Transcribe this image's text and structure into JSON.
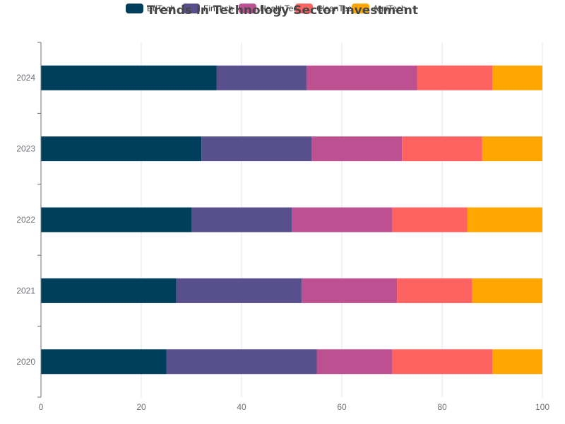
{
  "chart_data": {
    "type": "bar",
    "orientation": "horizontal",
    "stacked": true,
    "title": "Trends in Technology Sector Investment",
    "categories": [
      "2020",
      "2021",
      "2022",
      "2023",
      "2024"
    ],
    "series": [
      {
        "name": "EdTech",
        "color": "#003f5c",
        "values": [
          25,
          27,
          30,
          32,
          35
        ]
      },
      {
        "name": "FinTech",
        "color": "#58508d",
        "values": [
          30,
          25,
          20,
          22,
          18
        ]
      },
      {
        "name": "HealthTech",
        "color": "#bc5090",
        "values": [
          15,
          19,
          20,
          18,
          22
        ]
      },
      {
        "name": "CleanTech",
        "color": "#ff6361",
        "values": [
          20,
          15,
          15,
          16,
          15
        ]
      },
      {
        "name": "AgriTech",
        "color": "#ffa600",
        "values": [
          10,
          14,
          15,
          12,
          10
        ]
      }
    ],
    "xlim": [
      0,
      100
    ],
    "xticks": [
      0,
      20,
      40,
      60,
      80,
      100
    ],
    "grid": true,
    "legend": "top-center"
  }
}
